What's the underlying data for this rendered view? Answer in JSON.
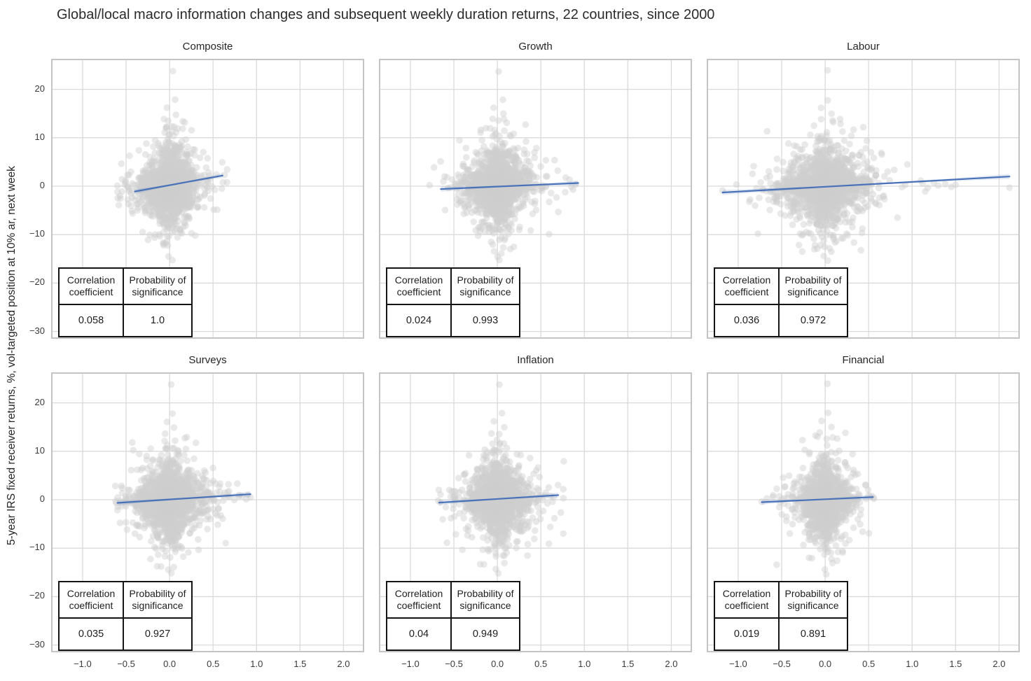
{
  "chart_data": {
    "type": "scatter",
    "title": "Global/local macro information changes and subsequent weekly duration returns, 22 countries, since 2000",
    "ylabel": "5-year IRS fixed receiver returns, %, vol-targeted position at 10% ar, next week",
    "xlabel": "",
    "grid": true,
    "legend": "none",
    "x_ticks": [
      -1.0,
      -0.5,
      0.0,
      0.5,
      1.0,
      1.5,
      2.0
    ],
    "y_ticks": [
      20,
      10,
      0,
      -10,
      -20,
      -30
    ],
    "xlim": [
      -1.362,
      2.238
    ],
    "ylim": [
      -31.5,
      26.3
    ],
    "point_color": "#cfcfcf",
    "line_color": "#4a72b8",
    "grid_color": "#dadada",
    "spine_color": "#c4c4c4",
    "y_scale": 2.55,
    "shared_y_outliers": [
      [
        0.02,
        23.8
      ],
      [
        0.05,
        17.8
      ],
      [
        -0.03,
        16.2
      ],
      [
        0.06,
        14.9
      ],
      [
        0.0,
        -14.5
      ],
      [
        0.03,
        -15.3
      ],
      [
        -0.05,
        13.8
      ]
    ],
    "stats_table": {
      "col1_header": "Correlation coefficient",
      "col2_header": "Probability of significance"
    },
    "panels": [
      {
        "title": "Composite",
        "correlation": "0.058",
        "probability": "1.0",
        "regression": {
          "x1": -0.4,
          "y1": -1.1,
          "x2": 0.61,
          "y2": 2.2
        },
        "scatter": {
          "n": 1900,
          "x_scale": 0.11,
          "x_min": -0.63,
          "x_max": 0.68
        },
        "outliers": [
          [
            0.66,
            0.8
          ],
          [
            0.6,
            -0.5
          ],
          [
            -0.6,
            0.1
          ]
        ]
      },
      {
        "title": "Growth",
        "correlation": "0.024",
        "probability": "0.993",
        "regression": {
          "x1": -0.65,
          "y1": -0.6,
          "x2": 0.93,
          "y2": 0.65
        },
        "scatter": {
          "n": 1900,
          "x_scale": 0.13,
          "x_min": -0.78,
          "x_max": 0.92
        },
        "outliers": [
          [
            0.9,
            0.35
          ],
          [
            0.87,
            -0.7
          ],
          [
            -0.78,
            0.2
          ],
          [
            0.85,
            -0.15
          ]
        ]
      },
      {
        "title": "Labour",
        "correlation": "0.036",
        "probability": "0.972",
        "regression": {
          "x1": -1.18,
          "y1": -1.3,
          "x2": 2.12,
          "y2": 2.0
        },
        "scatter": {
          "n": 2000,
          "x_scale": 0.16,
          "x_min": -0.95,
          "x_max": 1.05
        },
        "outliers": [
          [
            -1.18,
            -0.9
          ],
          [
            -1.02,
            0.35
          ],
          [
            1.12,
            0.55
          ],
          [
            1.18,
            -0.35
          ],
          [
            1.25,
            0.7
          ],
          [
            1.3,
            0.15
          ],
          [
            1.38,
            0.45
          ],
          [
            1.45,
            -0.15
          ],
          [
            2.12,
            -0.3
          ],
          [
            1.1,
            1.15
          ],
          [
            1.15,
            -1.1
          ],
          [
            1.5,
            0.3
          ]
        ]
      },
      {
        "title": "Surveys",
        "correlation": "0.035",
        "probability": "0.927",
        "regression": {
          "x1": -0.6,
          "y1": -0.65,
          "x2": 0.93,
          "y2": 1.15
        },
        "scatter": {
          "n": 1900,
          "x_scale": 0.13,
          "x_min": -0.65,
          "x_max": 0.85
        },
        "outliers": [
          [
            0.93,
            0.5
          ],
          [
            0.9,
            1.0
          ],
          [
            -0.62,
            -0.3
          ],
          [
            0.88,
            0.1
          ]
        ]
      },
      {
        "title": "Inflation",
        "correlation": "0.04",
        "probability": "0.949",
        "regression": {
          "x1": -0.67,
          "y1": -0.6,
          "x2": 0.7,
          "y2": 0.95
        },
        "scatter": {
          "n": 1900,
          "x_scale": 0.12,
          "x_min": -0.7,
          "x_max": 0.78
        },
        "outliers": [
          [
            0.76,
            0.3
          ],
          [
            -0.68,
            -0.2
          ]
        ]
      },
      {
        "title": "Financial",
        "correlation": "0.019",
        "probability": "0.891",
        "regression": {
          "x1": -0.73,
          "y1": -0.5,
          "x2": 0.55,
          "y2": 0.55
        },
        "scatter": {
          "n": 1700,
          "x_scale": 0.1,
          "x_min": -0.75,
          "x_max": 0.58
        },
        "outliers": [
          [
            0.56,
            0.2
          ],
          [
            -0.73,
            -0.4
          ],
          [
            0.5,
            0.9
          ],
          [
            -0.6,
            0.6
          ]
        ]
      }
    ]
  }
}
